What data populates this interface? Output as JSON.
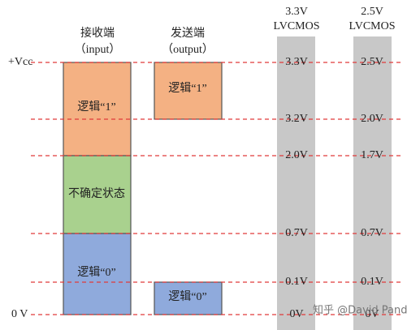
{
  "headers": {
    "receiver": [
      "接收端",
      "（input）"
    ],
    "sender": [
      "发送端",
      "（output）"
    ],
    "col1": [
      "3.3V",
      "LVCMOS"
    ],
    "col2": [
      "2.5V",
      "LVCMOS"
    ]
  },
  "rail_labels": {
    "top": "+Vcc",
    "bottom": "0 V"
  },
  "receiver_boxes": [
    "逻辑“1”",
    "不确定状态",
    "逻辑“0”"
  ],
  "sender_boxes": [
    "逻辑“1”",
    "逻辑“0”"
  ],
  "col1_levels": [
    "3.3V",
    "3.2V",
    "2.0V",
    "0.7V",
    "0.1V",
    "0V"
  ],
  "col2_levels": [
    "2.5V",
    "2.0V",
    "1.7V",
    "0.7V",
    "0.1V",
    "0V"
  ],
  "watermark": "知乎 @David Panda"
}
